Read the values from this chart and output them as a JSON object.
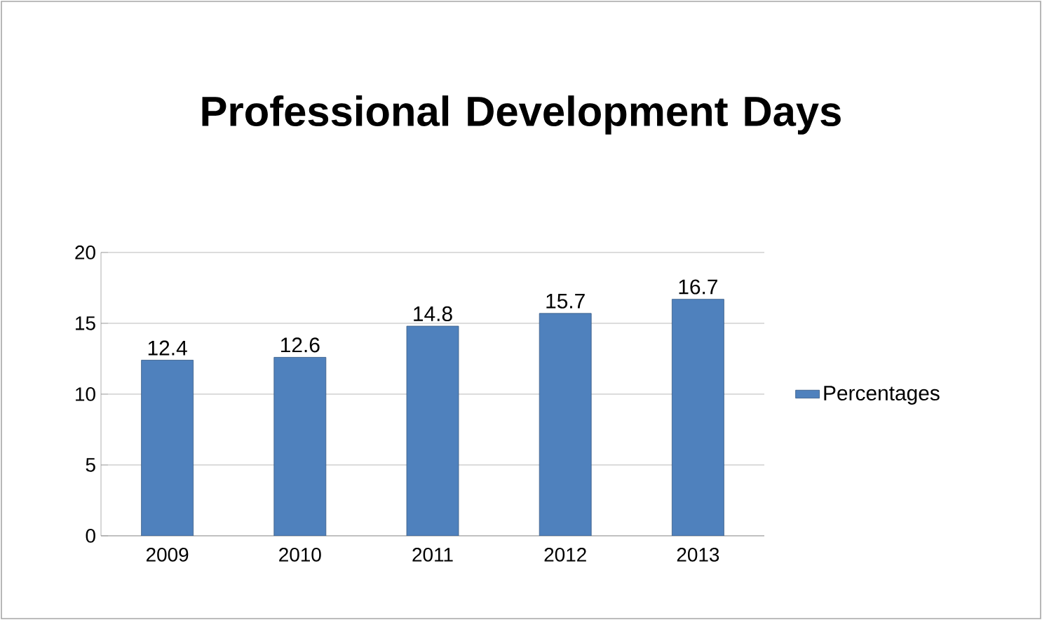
{
  "chart_data": {
    "type": "bar",
    "title": "Professional Development Days",
    "categories": [
      "2009",
      "2010",
      "2011",
      "2012",
      "2013"
    ],
    "series": [
      {
        "name": "Percentages",
        "color": "#4f81bd",
        "values": [
          12.4,
          12.6,
          14.8,
          15.7,
          16.7
        ]
      }
    ],
    "ylim": [
      0,
      20
    ],
    "yticks": [
      0,
      5,
      10,
      15,
      20
    ],
    "grid": "y",
    "legend": "right",
    "data_labels": true
  }
}
